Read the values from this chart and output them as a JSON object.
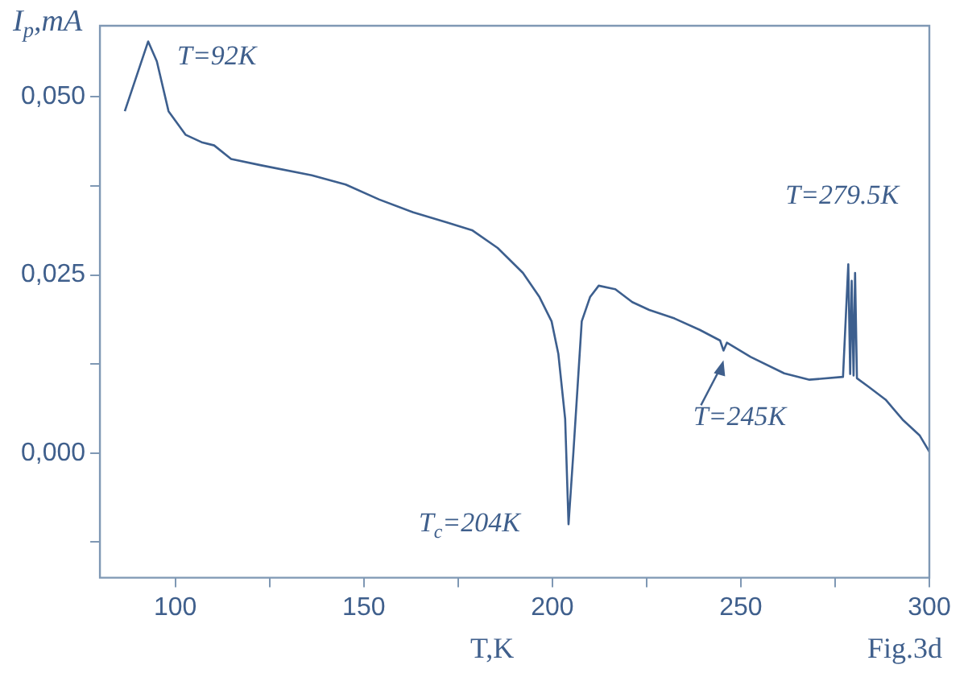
{
  "chart_data": {
    "type": "line",
    "xlabel": "T,K",
    "ylabel": "I$_{p}$,mA",
    "color": "#3d5f8e",
    "x": [
      86.6,
      92.8,
      95.1,
      98.2,
      102.7,
      107.2,
      110.3,
      114.8,
      122.8,
      136.2,
      145.2,
      154.1,
      163.1,
      172,
      178.7,
      185.5,
      192.2,
      196.6,
      199.8,
      201.6,
      203.4,
      204.3,
      205.6,
      207.8,
      210,
      212.3,
      216.7,
      221.2,
      225.7,
      232.4,
      239.1,
      244.5,
      245.4,
      246.3,
      252.6,
      261.5,
      268.2,
      277.1,
      278.5,
      279,
      279.4,
      279.9,
      280.3,
      280.8,
      283.9,
      288.4,
      292.9,
      297.4,
      300
    ],
    "values": [
      0.048,
      0.0578,
      0.055,
      0.048,
      0.0447,
      0.0436,
      0.0432,
      0.0413,
      0.0404,
      0.039,
      0.0377,
      0.0356,
      0.0338,
      0.0324,
      0.0313,
      0.0288,
      0.0253,
      0.0219,
      0.0185,
      0.0139,
      0.0048,
      -0.01,
      0.0002,
      0.0185,
      0.0219,
      0.0235,
      0.023,
      0.0212,
      0.0201,
      0.0189,
      0.0173,
      0.0158,
      0.0144,
      0.0155,
      0.0135,
      0.0112,
      0.0103,
      0.0107,
      0.0265,
      0.0111,
      0.0242,
      0.0109,
      0.0253,
      0.0105,
      0.0093,
      0.0075,
      0.0047,
      0.0025,
      0.0002
    ],
    "xlim": [
      80,
      300
    ],
    "ylim": [
      -0.0175,
      0.06
    ],
    "xticks": [
      100,
      {
        "value": 125,
        "label": null
      },
      150,
      {
        "value": 175,
        "label": null
      },
      200,
      {
        "value": 225,
        "label": null
      },
      250,
      {
        "value": 275,
        "label": null
      },
      300
    ],
    "yticks": [
      {
        "value": -0.0125,
        "label": null
      },
      {
        "value": 0,
        "label": "0,000"
      },
      {
        "value": 0.0125,
        "label": null
      },
      {
        "value": 0.025,
        "label": "0,025"
      },
      {
        "value": 0.0375,
        "label": null
      },
      {
        "value": 0.05,
        "label": "0,050"
      }
    ],
    "grid": false,
    "legend": false,
    "marker": "none",
    "line_style": "solid",
    "annotations": [
      {
        "text": "T=92K",
        "x": 92.8,
        "y": 0.0578
      },
      {
        "text": "T$_{c}$=204K",
        "x": 204.3,
        "y": -0.01
      },
      {
        "text": "T=245K",
        "x": 245.4,
        "y": 0.0144
      },
      {
        "text": "T=279.5K",
        "x": 279,
        "y": 0.0265
      },
      "Fig.3d"
    ]
  }
}
